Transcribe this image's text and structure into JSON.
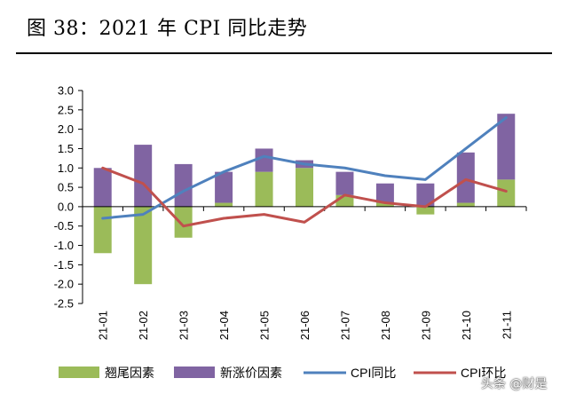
{
  "header": {
    "title": "图 38：2021 年 CPI 同比走势"
  },
  "watermark": "头条 @财是",
  "chart_data": {
    "type": "bar",
    "categories": [
      "21-01",
      "21-02",
      "21-03",
      "21-04",
      "21-05",
      "21-06",
      "21-07",
      "21-08",
      "21-09",
      "21-10",
      "21-11"
    ],
    "ylim": [
      -2.5,
      3.0
    ],
    "yticks": [
      "3.0",
      "2.5",
      "2.0",
      "1.5",
      "1.0",
      "0.5",
      "0.0",
      "-0.5",
      "-1.0",
      "-1.5",
      "-2.0",
      "-2.5"
    ],
    "series": [
      {
        "name": "翘尾因素",
        "kind": "bar",
        "color": "#9bbb59",
        "values": [
          -1.2,
          -2.0,
          -0.8,
          0.1,
          0.9,
          1.0,
          0.3,
          0.1,
          -0.2,
          0.1,
          0.7
        ]
      },
      {
        "name": "新涨价因素",
        "kind": "bar",
        "color": "#8064a2",
        "values": [
          1.0,
          1.6,
          1.1,
          0.8,
          0.6,
          0.2,
          0.6,
          0.5,
          0.6,
          1.3,
          1.7
        ]
      },
      {
        "name": "CPI同比",
        "kind": "line",
        "color": "#4f81bd",
        "values": [
          -0.3,
          -0.2,
          0.4,
          0.9,
          1.3,
          1.1,
          1.0,
          0.8,
          0.7,
          1.5,
          2.3
        ]
      },
      {
        "name": "CPI环比",
        "kind": "line",
        "color": "#c0504d",
        "values": [
          1.0,
          0.6,
          -0.5,
          -0.3,
          -0.2,
          -0.4,
          0.3,
          0.1,
          0.0,
          0.7,
          0.4
        ]
      }
    ],
    "legend": "bottom",
    "grid": false
  }
}
